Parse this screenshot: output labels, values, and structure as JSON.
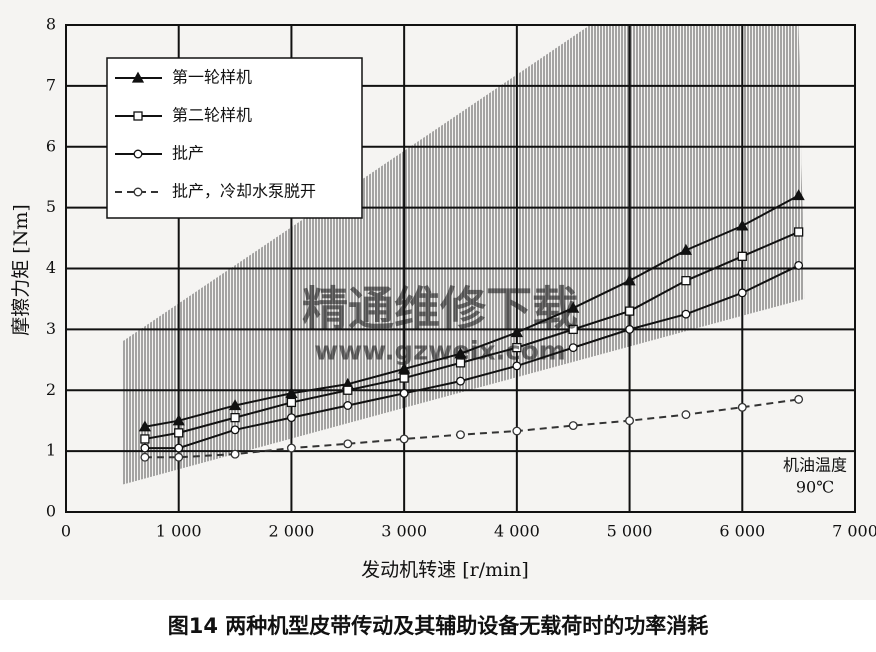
{
  "chart_data": {
    "type": "line",
    "x_label": "发动机转速 [r/min]",
    "y_label": "摩擦力矩 [Nm]",
    "caption": "图14 两种机型皮带传动及其辅助设备无载荷时的功率消耗",
    "annotation": [
      "机油温度",
      "90℃"
    ],
    "watermark": [
      "精通维修下载",
      "www.gzweix.com"
    ],
    "xlim": [
      0,
      7000
    ],
    "ylim": [
      0,
      8
    ],
    "xticks": [
      0,
      {
        "value": 1000,
        "label": "1 000"
      },
      {
        "value": 2000,
        "label": "2 000"
      },
      {
        "value": 3000,
        "label": "3 000"
      },
      {
        "value": 4000,
        "label": "4 000"
      },
      {
        "value": 5000,
        "label": "5 000"
      },
      {
        "value": 6000,
        "label": "6 000"
      },
      {
        "value": 7000,
        "label": "7 000"
      }
    ],
    "yticks": [
      0,
      1,
      2,
      3,
      4,
      5,
      6,
      7,
      8
    ],
    "grid": true,
    "legend": "upper left",
    "x": [
      700,
      1000,
      1500,
      2000,
      2500,
      3000,
      3500,
      4000,
      4500,
      5000,
      5500,
      6000,
      6500
    ],
    "shaded_region": {
      "x": [
        500,
        4650,
        6500,
        6550,
        500
      ],
      "y": [
        2.8,
        8,
        8,
        3.5,
        0.45
      ],
      "color": "#666666"
    },
    "series": [
      {
        "name": "第一轮样机",
        "color": "#111111",
        "marker": "triangle",
        "dashed": false,
        "values": [
          1.4,
          1.5,
          1.75,
          1.95,
          2.1,
          2.35,
          2.6,
          2.95,
          3.35,
          3.8,
          4.3,
          4.7,
          5.2
        ]
      },
      {
        "name": "第二轮样机",
        "color": "#111111",
        "marker": "square",
        "dashed": false,
        "values": [
          1.2,
          1.3,
          1.55,
          1.8,
          2.0,
          2.2,
          2.45,
          2.7,
          3.0,
          3.3,
          3.8,
          4.2,
          4.6
        ]
      },
      {
        "name": "批产",
        "color": "#111111",
        "marker": "circle",
        "dashed": false,
        "values": [
          1.05,
          1.05,
          1.35,
          1.55,
          1.75,
          1.95,
          2.15,
          2.4,
          2.7,
          3.0,
          3.25,
          3.6,
          4.05
        ]
      },
      {
        "name": "批产，冷却水泵脱开",
        "color": "#333333",
        "marker": "circle",
        "dashed": true,
        "values": [
          0.9,
          0.9,
          0.95,
          1.05,
          1.12,
          1.2,
          1.27,
          1.33,
          1.42,
          1.5,
          1.6,
          1.72,
          1.85
        ]
      }
    ]
  }
}
